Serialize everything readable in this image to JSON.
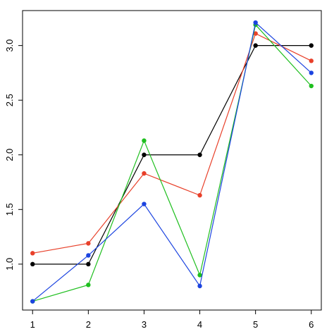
{
  "chart_data": {
    "type": "line",
    "x": [
      1,
      2,
      3,
      4,
      5,
      6
    ],
    "series": [
      {
        "color": "#000000",
        "values": [
          1.0,
          1.0,
          2.0,
          2.0,
          3.0,
          3.0
        ]
      },
      {
        "color": "#e8402a",
        "values": [
          1.1,
          1.19,
          1.83,
          1.63,
          3.11,
          2.86
        ]
      },
      {
        "color": "#1fbf1f",
        "values": [
          0.66,
          0.81,
          2.13,
          0.9,
          3.19,
          2.63
        ]
      },
      {
        "color": "#1c44e0",
        "values": [
          0.66,
          1.08,
          1.55,
          0.8,
          3.21,
          2.75
        ]
      }
    ],
    "xlim": [
      0.82,
      6.18
    ],
    "xticks": [
      1,
      2,
      3,
      4,
      5,
      6
    ],
    "ylim": [
      0.58,
      3.32
    ],
    "yticks": [
      {
        "value": 1,
        "label": "1.0"
      },
      {
        "value": 1.5,
        "label": "1.5"
      },
      {
        "value": 2,
        "label": "2.0"
      },
      {
        "value": 2.5,
        "label": "2.5"
      },
      {
        "value": 3,
        "label": "3.0"
      }
    ]
  }
}
